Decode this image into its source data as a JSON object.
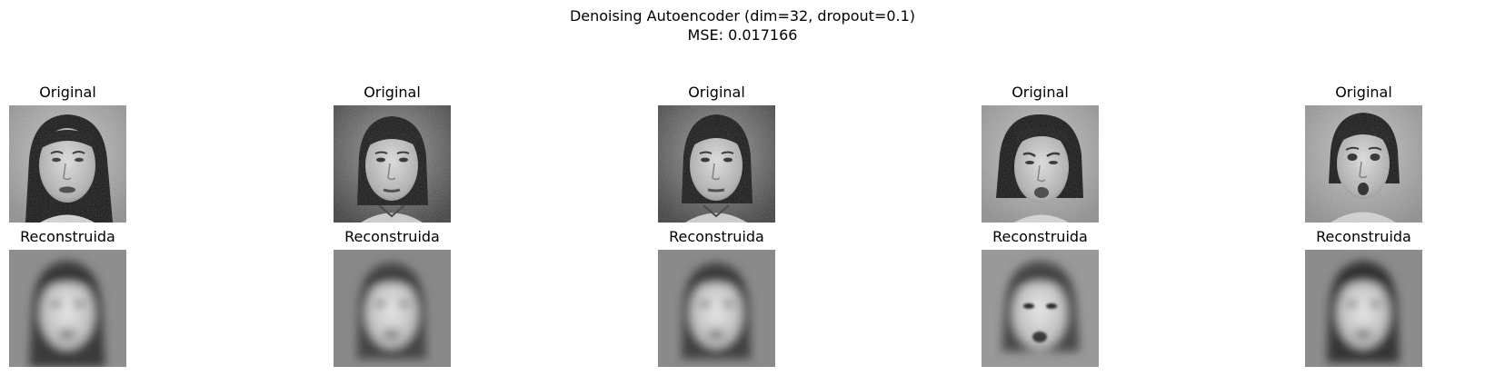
{
  "figure": {
    "title_line_1": "Denoising Autoencoder (dim=32, dropout=0.1)",
    "title_line_2": "MSE: 0.017166"
  },
  "columns": [
    {
      "original_label": "Original",
      "reconstruction_label": "Reconstruida"
    },
    {
      "original_label": "Original",
      "reconstruction_label": "Reconstruida"
    },
    {
      "original_label": "Original",
      "reconstruction_label": "Reconstruida"
    },
    {
      "original_label": "Original",
      "reconstruction_label": "Reconstruida"
    },
    {
      "original_label": "Original",
      "reconstruction_label": "Reconstruida"
    }
  ],
  "colors": {
    "background": "#ffffff",
    "text": "#000000"
  }
}
